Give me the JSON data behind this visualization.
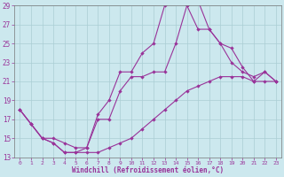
{
  "xlabel": "Windchill (Refroidissement éolien,°C)",
  "background_color": "#cce8ee",
  "grid_color": "#aacdd4",
  "line_color": "#993399",
  "xlim": [
    0,
    23
  ],
  "ylim": [
    13,
    29
  ],
  "xticks": [
    0,
    1,
    2,
    3,
    4,
    5,
    6,
    7,
    8,
    9,
    10,
    11,
    12,
    13,
    14,
    15,
    16,
    17,
    18,
    19,
    20,
    21,
    22,
    23
  ],
  "yticks": [
    13,
    15,
    17,
    19,
    21,
    23,
    25,
    27,
    29
  ],
  "curve_high_x": [
    0,
    1,
    2,
    3,
    4,
    5,
    6,
    7,
    8,
    9,
    10,
    11,
    12,
    13,
    14,
    15,
    16,
    17,
    18,
    19,
    20,
    21,
    22,
    23
  ],
  "curve_high_y": [
    18,
    16.5,
    15,
    14.5,
    13.5,
    13.5,
    14,
    17.5,
    19,
    22,
    22,
    24,
    25,
    29,
    29.5,
    29,
    26.5,
    26.5,
    25,
    23,
    22,
    21.5,
    22,
    21
  ],
  "curve_mid_x": [
    0,
    1,
    2,
    3,
    4,
    5,
    6,
    7,
    8,
    9,
    10,
    11,
    12,
    13,
    14,
    15,
    16,
    17,
    18,
    19,
    20,
    21,
    22,
    23
  ],
  "curve_mid_y": [
    18,
    16.5,
    15,
    15,
    14.5,
    14,
    14,
    17,
    17,
    20,
    21.5,
    21.5,
    22,
    22,
    25,
    29,
    29.5,
    26.5,
    25,
    24.5,
    22.5,
    21,
    22,
    21
  ],
  "curve_low_x": [
    0,
    1,
    2,
    3,
    4,
    5,
    6,
    7,
    8,
    9,
    10,
    11,
    12,
    13,
    14,
    15,
    16,
    17,
    18,
    19,
    20,
    21,
    22,
    23
  ],
  "curve_low_y": [
    18,
    16.5,
    15,
    14.5,
    13.5,
    13.5,
    13.5,
    13.5,
    14,
    14.5,
    15,
    16,
    17,
    18,
    19,
    20,
    20.5,
    21,
    21.5,
    21.5,
    21.5,
    21,
    21,
    21
  ]
}
